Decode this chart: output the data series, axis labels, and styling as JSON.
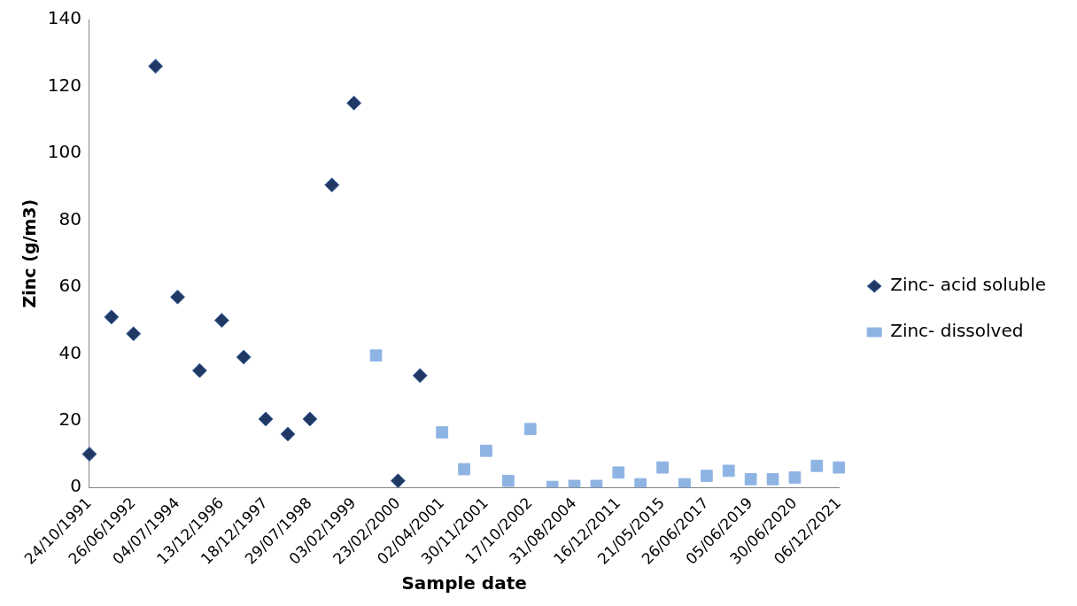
{
  "chart_data": {
    "type": "scatter",
    "xlabel": "Sample date",
    "ylabel": "Zinc (g/m3)",
    "categories": [
      "24/10/1991",
      null,
      "26/06/1992",
      null,
      "04/07/1994",
      null,
      "13/12/1996",
      null,
      "18/12/1997",
      null,
      "29/07/1998",
      null,
      "03/02/1999",
      null,
      "23/02/2000",
      null,
      "02/04/2001",
      null,
      "30/11/2001",
      null,
      "17/10/2002",
      null,
      "31/08/2004",
      null,
      "16/12/2011",
      null,
      "21/05/2015",
      null,
      "26/06/2017",
      null,
      "05/06/2019",
      null,
      "30/06/2020",
      null,
      "06/12/2021"
    ],
    "series": [
      {
        "name": "Zinc- acid soluble",
        "color": "#1f3864",
        "marker": "diamond",
        "values": [
          10,
          51,
          46,
          126,
          57,
          35,
          50,
          39,
          20.5,
          16,
          20.5,
          90.5,
          115,
          null,
          2,
          33.5,
          null,
          null,
          null,
          null,
          null,
          null,
          null,
          null,
          null,
          null,
          null,
          null,
          null,
          null,
          null,
          null,
          null,
          null,
          null
        ]
      },
      {
        "name": "Zinc- dissolved",
        "color": "#8eb4e3",
        "marker": "square",
        "values": [
          null,
          null,
          null,
          null,
          null,
          null,
          null,
          null,
          null,
          null,
          null,
          null,
          null,
          39.5,
          null,
          null,
          16.5,
          5.5,
          11,
          2,
          17.5,
          0.2,
          0.5,
          0.5,
          4.5,
          1,
          6,
          1,
          3.5,
          5,
          2.5,
          2.5,
          3,
          6.5,
          6
        ]
      }
    ],
    "ylim": [
      0,
      140
    ],
    "yticks": [
      0,
      20,
      40,
      60,
      80,
      100,
      120,
      140
    ],
    "grid": false,
    "legend": "right"
  }
}
